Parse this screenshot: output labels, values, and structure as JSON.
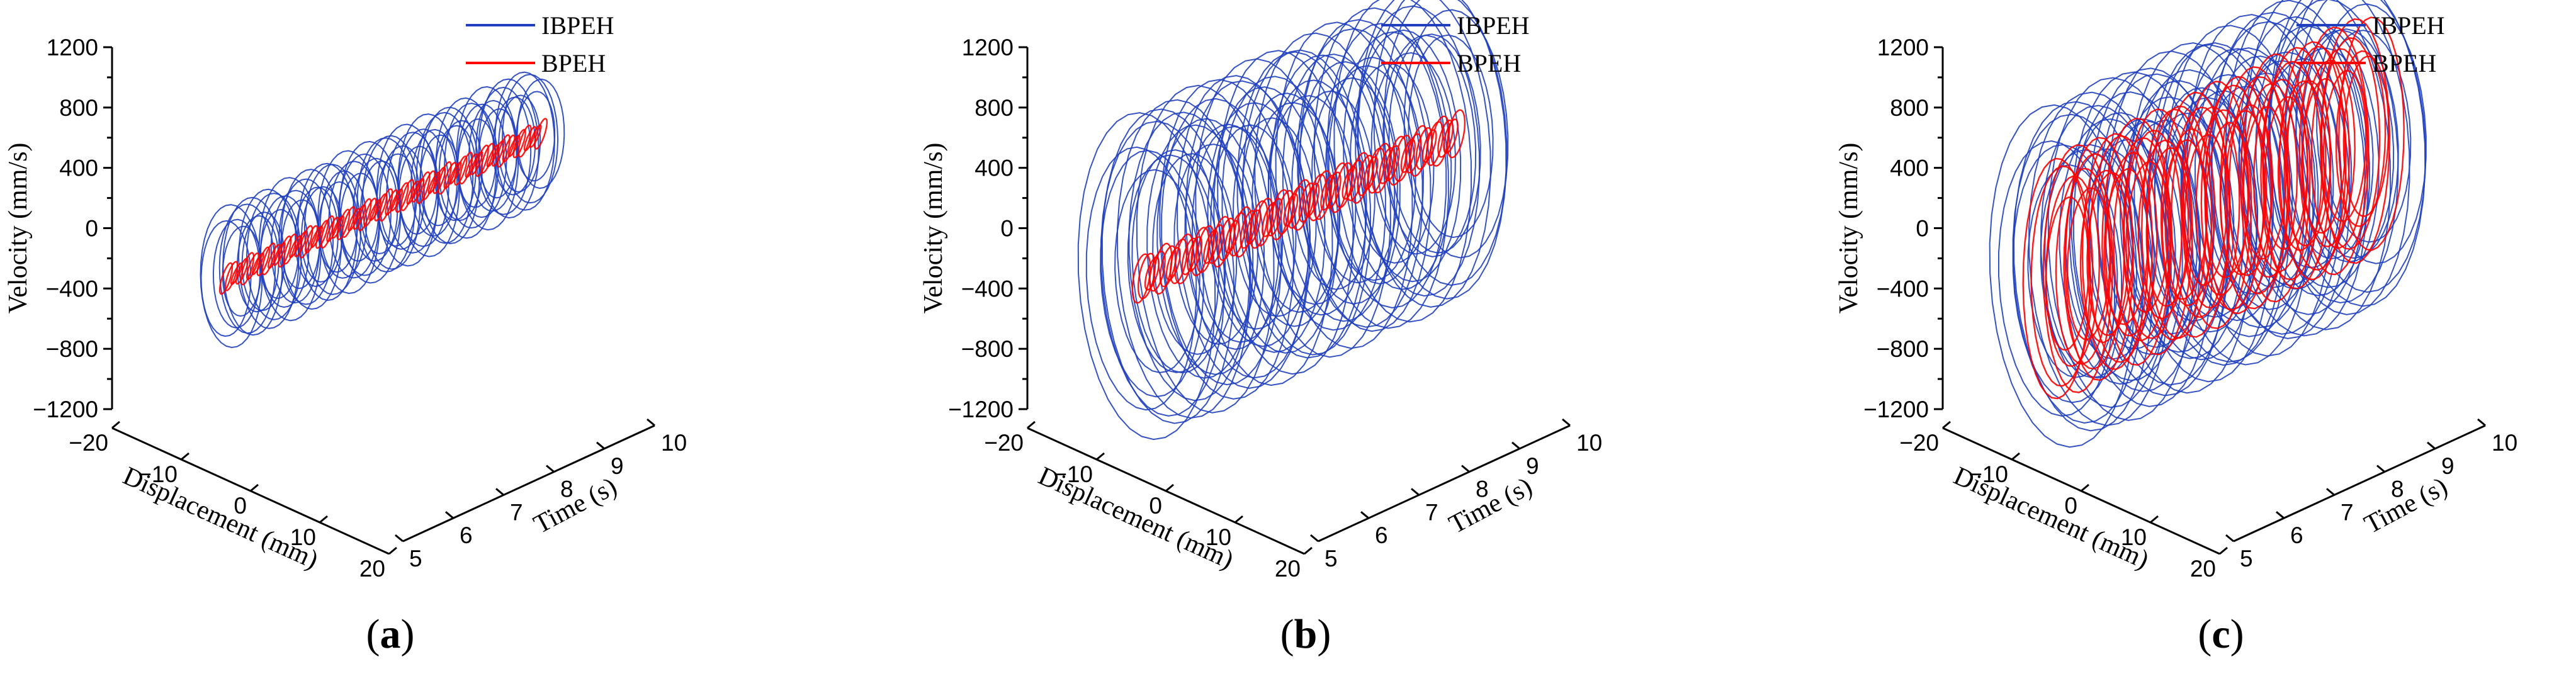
{
  "chart_data": [
    {
      "type": "line",
      "panel_label": "a",
      "zlabel": "Velocity (mm/s)",
      "xlabel": "Displacement (mm)",
      "ylabel": "Time (s)",
      "velocity_ticks": [
        "1200",
        "800",
        "400",
        "0",
        "−400",
        "−800",
        "−1200"
      ],
      "displacement_ticks": [
        "−20",
        "−10",
        "0",
        "10",
        "20"
      ],
      "time_ticks": [
        "5",
        "6",
        "7",
        "8",
        "9",
        "10"
      ],
      "zlim": [
        -1200,
        1200
      ],
      "xlim": [
        -20,
        20
      ],
      "ylim": [
        5,
        10
      ],
      "legend_position": "top-right",
      "series": [
        {
          "name": "IBPEH",
          "color": "#1f3fbf",
          "velocity_amplitude": 450,
          "displacement_amplitude": 8
        },
        {
          "name": "BPEH",
          "color": "#ff0000",
          "velocity_amplitude": 90,
          "displacement_amplitude": 1
        }
      ]
    },
    {
      "type": "line",
      "panel_label": "b",
      "zlabel": "Velocity (mm/s)",
      "xlabel": "Displacement (mm)",
      "ylabel": "Time (s)",
      "velocity_ticks": [
        "1200",
        "800",
        "400",
        "0",
        "−400",
        "−800",
        "−1200"
      ],
      "displacement_ticks": [
        "−20",
        "−10",
        "0",
        "10",
        "20"
      ],
      "time_ticks": [
        "5",
        "6",
        "7",
        "8",
        "9",
        "10"
      ],
      "zlim": [
        -1200,
        1200
      ],
      "xlim": [
        -20,
        20
      ],
      "ylim": [
        5,
        10
      ],
      "legend_position": "top-right",
      "series": [
        {
          "name": "IBPEH",
          "color": "#1f3fbf",
          "velocity_amplitude": 1050,
          "displacement_amplitude": 18
        },
        {
          "name": "BPEH",
          "color": "#ff0000",
          "velocity_amplitude": 150,
          "displacement_amplitude": 2
        }
      ]
    },
    {
      "type": "line",
      "panel_label": "c",
      "zlabel": "Velocity (mm/s)",
      "xlabel": "Displacement (mm)",
      "ylabel": "Time (s)",
      "velocity_ticks": [
        "1200",
        "800",
        "400",
        "0",
        "−400",
        "−800",
        "−1200"
      ],
      "displacement_ticks": [
        "−20",
        "−10",
        "0",
        "10",
        "20"
      ],
      "time_ticks": [
        "5",
        "6",
        "7",
        "8",
        "9",
        "10"
      ],
      "zlim": [
        -1200,
        1200
      ],
      "xlim": [
        -20,
        20
      ],
      "ylim": [
        5,
        10
      ],
      "legend_position": "top-right",
      "series": [
        {
          "name": "IBPEH",
          "color": "#1f3fbf",
          "velocity_amplitude": 1100,
          "displacement_amplitude": 19
        },
        {
          "name": "BPEH",
          "color": "#ff0000",
          "velocity_amplitude": 800,
          "displacement_amplitude": 9
        }
      ]
    }
  ]
}
